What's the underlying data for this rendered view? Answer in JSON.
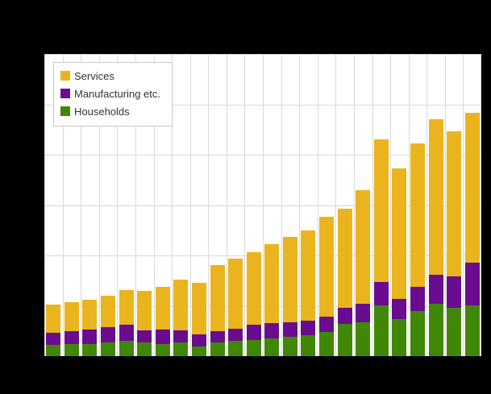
{
  "figure": {
    "background_color": "#000000",
    "plot_background_color": "#ffffff",
    "gridline_color": "#d9d9d9"
  },
  "legend": {
    "items": [
      {
        "label": "Services",
        "color": "#EAB41E"
      },
      {
        "label": "Manufacturing etc.",
        "color": "#690C90"
      },
      {
        "label": "Households",
        "color": "#418706"
      }
    ]
  },
  "chart_data": {
    "type": "bar",
    "stacked": true,
    "title": "",
    "xlabel": "",
    "ylabel": "",
    "axis_tick_labels_visible": false,
    "n_bars": 24,
    "ylim": [
      0,
      6000
    ],
    "y_gridline_step": 1000,
    "grid": "both",
    "legend_position": "top-left-inside",
    "stack_bottom_to_top": [
      "Households",
      "Manufacturing etc.",
      "Services"
    ],
    "series": [
      {
        "name": "Services",
        "color": "#EAB41E",
        "values": [
          550,
          570,
          595,
          615,
          690,
          775,
          850,
          995,
          1030,
          1315,
          1395,
          1450,
          1570,
          1695,
          1795,
          1980,
          1965,
          2265,
          2825,
          2590,
          2840,
          3080,
          2880,
          2970
        ]
      },
      {
        "name": "Manufacturing etc.",
        "color": "#690C90",
        "values": [
          250,
          265,
          295,
          310,
          320,
          250,
          290,
          240,
          240,
          230,
          230,
          295,
          305,
          295,
          285,
          305,
          320,
          365,
          470,
          405,
          485,
          585,
          630,
          855
        ]
      },
      {
        "name": "Households",
        "color": "#418706",
        "values": [
          220,
          235,
          235,
          270,
          300,
          270,
          240,
          280,
          190,
          265,
          310,
          325,
          350,
          380,
          415,
          485,
          645,
          670,
          1005,
          735,
          895,
          1035,
          960,
          1005
        ]
      }
    ]
  }
}
